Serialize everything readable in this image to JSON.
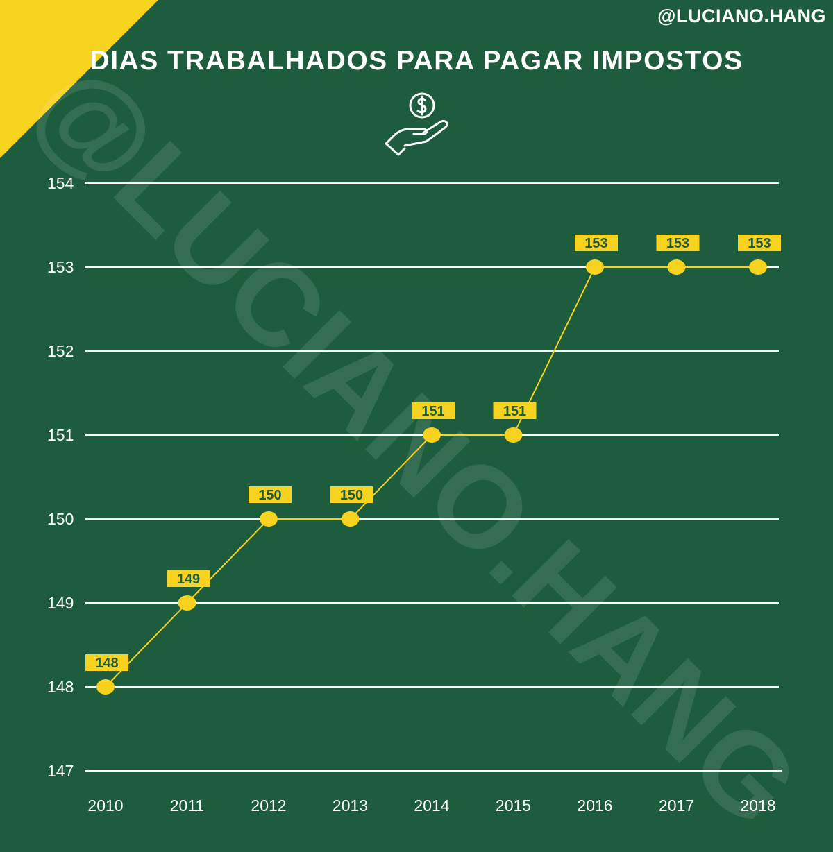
{
  "header": {
    "handle": "@LUCIANO.HANG",
    "title": "DIAS TRABALHADOS PARA PAGAR IMPOSTOS",
    "icon": "hand-holding-dollar-icon",
    "watermark": "@LUCIANO.HANG"
  },
  "colors": {
    "background": "#1d5c3d",
    "accent": "#f7d21f",
    "grid": "#ffffff",
    "text": "#ffffff"
  },
  "chart_data": {
    "type": "line",
    "title": "DIAS TRABALHADOS PARA PAGAR IMPOSTOS",
    "xlabel": "",
    "ylabel": "",
    "categories": [
      "2010",
      "2011",
      "2012",
      "2013",
      "2014",
      "2015",
      "2016",
      "2017",
      "2018"
    ],
    "series": [
      {
        "values": [
          148,
          149,
          150,
          150,
          151,
          151,
          153,
          153,
          153
        ]
      }
    ],
    "ylim": [
      147,
      154
    ],
    "yticks": [
      "147",
      "148",
      "149",
      "150",
      "151",
      "152",
      "153",
      "154"
    ],
    "grid": true,
    "data_labels": true,
    "legend": "none"
  }
}
